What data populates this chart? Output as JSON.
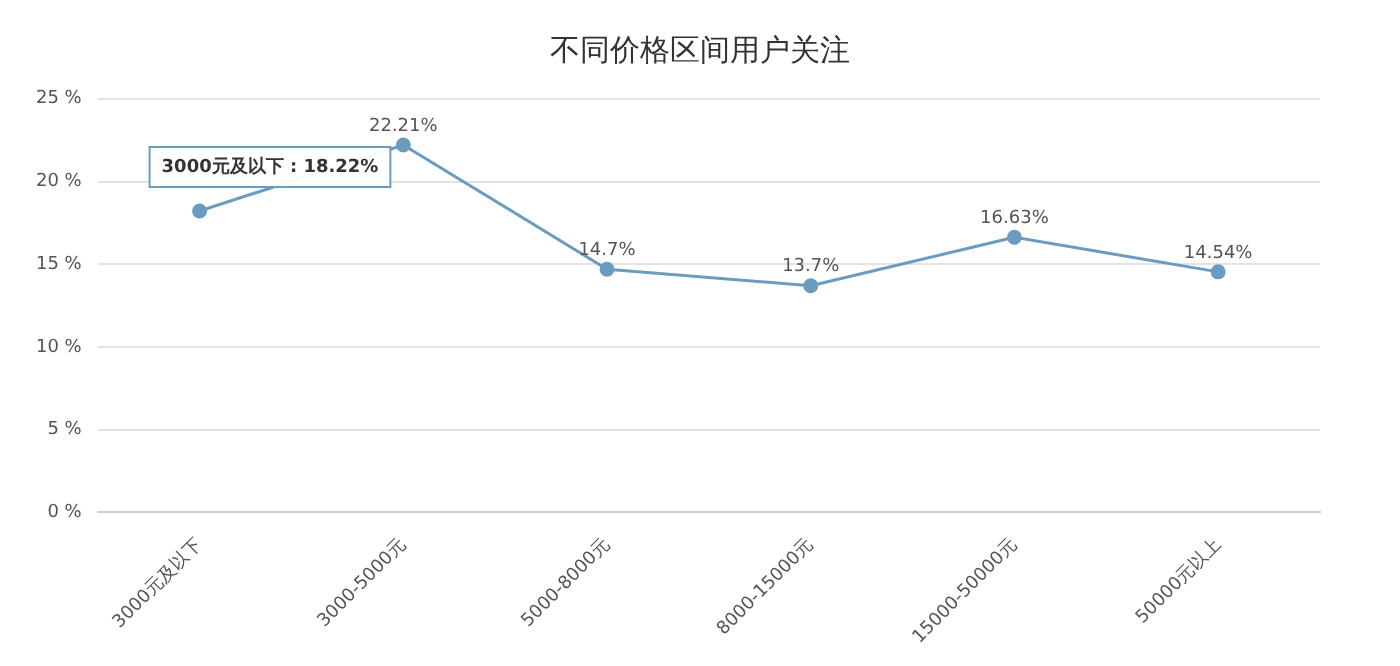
{
  "chart_data": {
    "type": "line",
    "title": "不同价格区间用户关注",
    "categories": [
      "3000元及以下",
      "3000-5000元",
      "5000-8000元",
      "8000-15000元",
      "15000-50000元",
      "50000元以上"
    ],
    "series": [
      {
        "color": "#6a9cc0",
        "values": [
          18.22,
          22.21,
          14.7,
          13.7,
          16.63,
          14.54
        ],
        "value_labels": [
          null,
          "22.21%",
          "14.7%",
          "13.7%",
          "16.63%",
          "14.54%"
        ]
      }
    ],
    "ylim": [
      0,
      25
    ],
    "yticks": [
      {
        "value": 0,
        "label": "0 %"
      },
      {
        "value": 5,
        "label": "5 %"
      },
      {
        "value": 10,
        "label": "10 %"
      },
      {
        "value": 15,
        "label": "15 %"
      },
      {
        "value": 20,
        "label": "20 %"
      },
      {
        "value": 25,
        "label": "25 %"
      }
    ],
    "grid": "y",
    "marker": "circle",
    "line_style": "solid",
    "legend": false,
    "annotations": [
      {
        "text": "3000元及以下 : 18.22%",
        "x": "3000元及以下",
        "y": 18.22
      }
    ]
  }
}
